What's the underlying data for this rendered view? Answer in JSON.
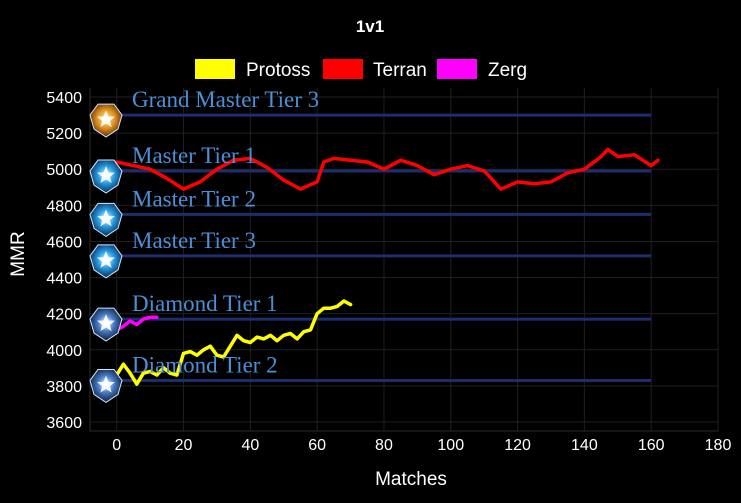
{
  "chart_data": {
    "type": "line",
    "title": "1v1",
    "xlabel": "Matches",
    "ylabel": "MMR",
    "xlim": [
      -8,
      180
    ],
    "ylim": [
      3550,
      5450
    ],
    "x_ticks": [
      0,
      20,
      40,
      60,
      80,
      100,
      120,
      140,
      160,
      180
    ],
    "y_ticks": [
      3600,
      3800,
      4000,
      4200,
      4400,
      4600,
      4800,
      5000,
      5200,
      5400
    ],
    "grid": true,
    "legend_position": "top",
    "series": [
      {
        "name": "Protoss",
        "color": "#ffff00",
        "points": [
          [
            0,
            3860
          ],
          [
            2,
            3920
          ],
          [
            4,
            3870
          ],
          [
            6,
            3810
          ],
          [
            8,
            3870
          ],
          [
            10,
            3880
          ],
          [
            12,
            3860
          ],
          [
            14,
            3900
          ],
          [
            16,
            3870
          ],
          [
            18,
            3860
          ],
          [
            20,
            3980
          ],
          [
            22,
            3990
          ],
          [
            24,
            3970
          ],
          [
            26,
            4000
          ],
          [
            28,
            4020
          ],
          [
            30,
            3970
          ],
          [
            32,
            3960
          ],
          [
            34,
            4020
          ],
          [
            36,
            4080
          ],
          [
            38,
            4050
          ],
          [
            40,
            4040
          ],
          [
            42,
            4070
          ],
          [
            44,
            4060
          ],
          [
            46,
            4080
          ],
          [
            48,
            4050
          ],
          [
            50,
            4080
          ],
          [
            52,
            4090
          ],
          [
            54,
            4060
          ],
          [
            56,
            4100
          ],
          [
            58,
            4110
          ],
          [
            60,
            4200
          ],
          [
            62,
            4230
          ],
          [
            64,
            4230
          ],
          [
            66,
            4240
          ],
          [
            68,
            4270
          ],
          [
            70,
            4250
          ]
        ]
      },
      {
        "name": "Terran",
        "color": "#ff0000",
        "points": [
          [
            0,
            5040
          ],
          [
            5,
            5020
          ],
          [
            10,
            5000
          ],
          [
            15,
            4950
          ],
          [
            20,
            4890
          ],
          [
            25,
            4930
          ],
          [
            30,
            5000
          ],
          [
            35,
            5050
          ],
          [
            40,
            5060
          ],
          [
            45,
            5010
          ],
          [
            50,
            4940
          ],
          [
            55,
            4890
          ],
          [
            60,
            4930
          ],
          [
            62,
            5040
          ],
          [
            65,
            5060
          ],
          [
            70,
            5050
          ],
          [
            75,
            5040
          ],
          [
            80,
            5000
          ],
          [
            85,
            5050
          ],
          [
            90,
            5020
          ],
          [
            95,
            4970
          ],
          [
            100,
            5000
          ],
          [
            105,
            5020
          ],
          [
            110,
            4990
          ],
          [
            115,
            4890
          ],
          [
            120,
            4930
          ],
          [
            125,
            4920
          ],
          [
            130,
            4930
          ],
          [
            135,
            4980
          ],
          [
            140,
            5000
          ],
          [
            145,
            5070
          ],
          [
            147,
            5110
          ],
          [
            150,
            5070
          ],
          [
            155,
            5080
          ],
          [
            160,
            5020
          ],
          [
            162,
            5050
          ]
        ]
      },
      {
        "name": "Zerg",
        "color": "#ff00ff",
        "points": [
          [
            0,
            4110
          ],
          [
            2,
            4130
          ],
          [
            4,
            4160
          ],
          [
            6,
            4140
          ],
          [
            8,
            4170
          ],
          [
            10,
            4180
          ],
          [
            12,
            4180
          ]
        ]
      }
    ],
    "tiers": [
      {
        "label": "Grand Master Tier 3",
        "mmr": 5300
      },
      {
        "label": "Master Tier 1",
        "mmr": 4990
      },
      {
        "label": "Master Tier 2",
        "mmr": 4750
      },
      {
        "label": "Master Tier 3",
        "mmr": 4520
      },
      {
        "label": "Diamond Tier 1",
        "mmr": 4170
      },
      {
        "label": "Diamond Tier 2",
        "mmr": 3830
      }
    ]
  }
}
